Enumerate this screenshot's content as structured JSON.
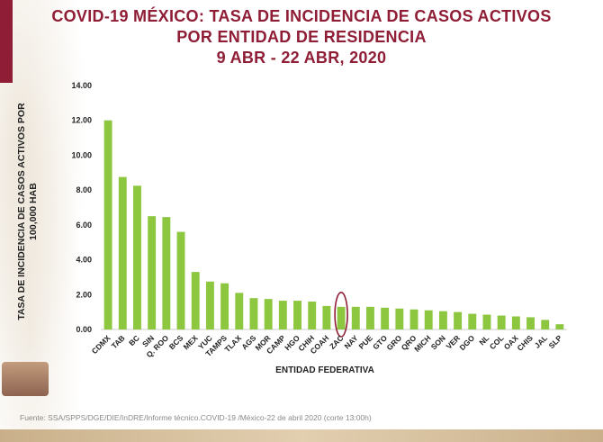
{
  "title": {
    "line1": "COVID-19 MÉXICO: TASA DE INCIDENCIA DE CASOS ACTIVOS",
    "line2": "POR ENTIDAD DE RESIDENCIA",
    "line3": "9 ABR - 22 ABR, 2020"
  },
  "source": "Fuente: SSA/SPPS/DGE/DIE/InDRE/Informe técnico.COVID-19 /México-22 de abril 2020 (corte 13:00h)",
  "colors": {
    "bar": "#8dc63f",
    "title": "#8f1d36",
    "highlight": "#8f1d36"
  },
  "chart_data": {
    "type": "bar",
    "xlabel": "ENTIDAD FEDERATIVA",
    "ylabel": "TASA DE INCIDENCIA DE CASOS ACTIVOS POR 100,000 HAB",
    "ylim": [
      0,
      14
    ],
    "yticks": [
      "0.00",
      "2.00",
      "4.00",
      "6.00",
      "8.00",
      "10.00",
      "12.00",
      "14.00"
    ],
    "grid": false,
    "highlighted_category": "ZAC",
    "categories": [
      "CDMX",
      "TAB",
      "BC",
      "SIN",
      "Q. ROO",
      "BCS",
      "MEX",
      "YUC",
      "TAMPS",
      "TLAX",
      "AGS",
      "MOR",
      "CAMP",
      "HGO",
      "CHIH",
      "COAH",
      "ZAC",
      "NAY",
      "PUE",
      "GTO",
      "GRO",
      "QRO",
      "MICH",
      "SON",
      "VER",
      "DGO",
      "NL",
      "COL",
      "OAX",
      "CHIS",
      "JAL",
      "SLP"
    ],
    "values": [
      12.0,
      8.75,
      8.25,
      6.5,
      6.45,
      5.6,
      3.3,
      2.75,
      2.65,
      2.1,
      1.8,
      1.75,
      1.65,
      1.65,
      1.6,
      1.35,
      1.3,
      1.3,
      1.3,
      1.25,
      1.2,
      1.15,
      1.1,
      1.05,
      1.0,
      0.9,
      0.85,
      0.8,
      0.75,
      0.7,
      0.55,
      0.3
    ]
  }
}
